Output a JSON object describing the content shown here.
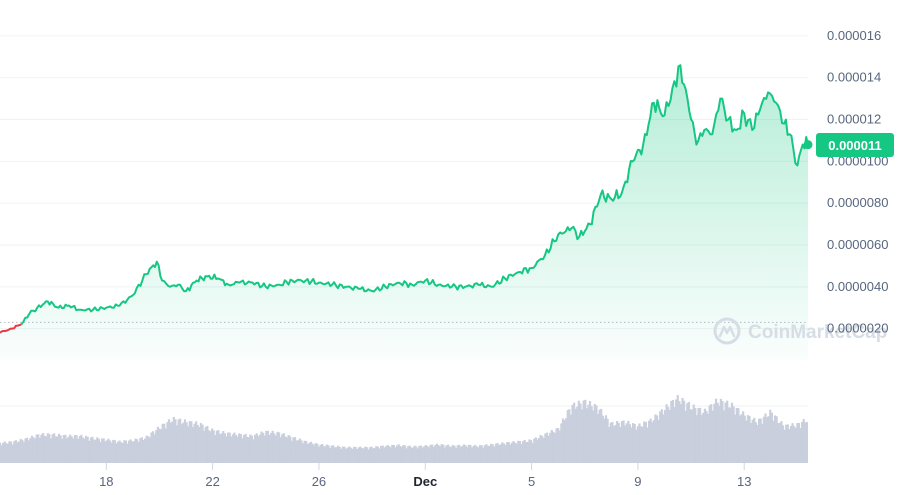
{
  "watermark": "CoinMarketCap",
  "current_price_label": "0.000011",
  "colors": {
    "up": "#16c784",
    "down": "#ea3943",
    "volume": "#c9cfdc",
    "grid": "#eff2f5",
    "baseline": "#b3b9c4"
  },
  "chart_data": {
    "type": "area",
    "y_ticks": [
      "0.000016",
      "0.000014",
      "0.000012",
      "0.0000100",
      "0.0000080",
      "0.0000060",
      "0.0000040",
      "0.0000020"
    ],
    "x_ticks": [
      {
        "label": "18",
        "bold": false
      },
      {
        "label": "22",
        "bold": false
      },
      {
        "label": "26",
        "bold": false
      },
      {
        "label": "Dec",
        "bold": true
      },
      {
        "label": "5",
        "bold": false
      },
      {
        "label": "9",
        "bold": false
      },
      {
        "label": "13",
        "bold": false
      }
    ],
    "ylim": [
      5e-07,
      1.7e-05
    ],
    "baseline_value": 2.3e-06,
    "x_range": [
      14.0,
      44.4
    ],
    "price": {
      "x": [
        14.0,
        14.4,
        14.8,
        15.1,
        15.4,
        15.8,
        16.2,
        16.6,
        17.0,
        17.5,
        18.0,
        18.5,
        19.0,
        19.5,
        19.9,
        20.1,
        20.4,
        20.7,
        21.0,
        21.4,
        21.8,
        22.2,
        22.6,
        23.0,
        23.5,
        24.0,
        24.5,
        25.0,
        25.5,
        26.0,
        26.5,
        27.0,
        27.5,
        28.0,
        28.5,
        29.0,
        29.5,
        30.0,
        30.5,
        31.0,
        31.5,
        32.0,
        32.5,
        33.0,
        33.5,
        34.0,
        34.5,
        35.0,
        35.5,
        35.8,
        36.2,
        36.6,
        37.0,
        37.4,
        37.8,
        38.2,
        38.6,
        39.0,
        39.3,
        39.6,
        40.0,
        40.2,
        40.5,
        40.8,
        41.1,
        41.4,
        41.7,
        42.0,
        42.3,
        42.6,
        42.9,
        43.2,
        43.5,
        43.7,
        44.0,
        44.2,
        44.4
      ],
      "y": [
        1.8e-06,
        2e-06,
        2.2e-06,
        2.7e-06,
        3e-06,
        3.3e-06,
        3e-06,
        3.1e-06,
        2.9e-06,
        2.9e-06,
        3e-06,
        3.1e-06,
        3.6e-06,
        4.6e-06,
        5.2e-06,
        4.3e-06,
        4e-06,
        4.1e-06,
        3.8e-06,
        4.3e-06,
        4.5e-06,
        4.4e-06,
        4.1e-06,
        4.2e-06,
        4.2e-06,
        4e-06,
        4.1e-06,
        4.3e-06,
        4.3e-06,
        4.2e-06,
        4.1e-06,
        4e-06,
        3.9e-06,
        3.8e-06,
        4e-06,
        4.2e-06,
        4.1e-06,
        4.3e-06,
        4.1e-06,
        4e-06,
        4e-06,
        4.1e-06,
        4e-06,
        4.4e-06,
        4.7e-06,
        4.9e-06,
        5.5e-06,
        6.5e-06,
        6.8e-06,
        6.4e-06,
        7e-06,
        8.4e-06,
        8.2e-06,
        8.5e-06,
        1e-05,
        1.08e-05,
        1.28e-05,
        1.22e-05,
        1.35e-05,
        1.46e-05,
        1.2e-05,
        1.08e-05,
        1.15e-05,
        1.13e-05,
        1.3e-05,
        1.2e-05,
        1.15e-05,
        1.23e-05,
        1.15e-05,
        1.25e-05,
        1.33e-05,
        1.28e-05,
        1.18e-05,
        1.13e-05,
        9.8e-06,
        1.08e-05,
        1.08e-05
      ]
    },
    "volume": {
      "x": [
        14.0,
        14.5,
        15.0,
        15.5,
        16.0,
        16.5,
        17.0,
        17.5,
        18.0,
        18.5,
        19.0,
        19.5,
        20.0,
        20.5,
        21.0,
        21.5,
        22.0,
        22.5,
        23.0,
        23.5,
        24.0,
        24.5,
        25.0,
        25.5,
        26.0,
        26.5,
        27.0,
        27.5,
        28.0,
        28.5,
        29.0,
        29.5,
        30.0,
        30.5,
        31.0,
        31.5,
        32.0,
        32.5,
        33.0,
        33.5,
        34.0,
        34.5,
        35.0,
        35.5,
        36.0,
        36.5,
        37.0,
        37.5,
        38.0,
        38.5,
        39.0,
        39.5,
        40.0,
        40.5,
        41.0,
        41.5,
        42.0,
        42.5,
        43.0,
        43.5,
        44.0,
        44.4
      ],
      "v": [
        0.28,
        0.3,
        0.34,
        0.4,
        0.4,
        0.38,
        0.38,
        0.35,
        0.33,
        0.3,
        0.32,
        0.36,
        0.5,
        0.62,
        0.58,
        0.55,
        0.46,
        0.42,
        0.4,
        0.38,
        0.44,
        0.42,
        0.36,
        0.3,
        0.26,
        0.24,
        0.22,
        0.22,
        0.22,
        0.24,
        0.25,
        0.23,
        0.24,
        0.26,
        0.24,
        0.25,
        0.24,
        0.26,
        0.28,
        0.3,
        0.32,
        0.4,
        0.48,
        0.8,
        0.86,
        0.78,
        0.55,
        0.58,
        0.52,
        0.6,
        0.76,
        0.92,
        0.8,
        0.72,
        0.88,
        0.82,
        0.68,
        0.58,
        0.72,
        0.52,
        0.54,
        0.62
      ]
    }
  }
}
